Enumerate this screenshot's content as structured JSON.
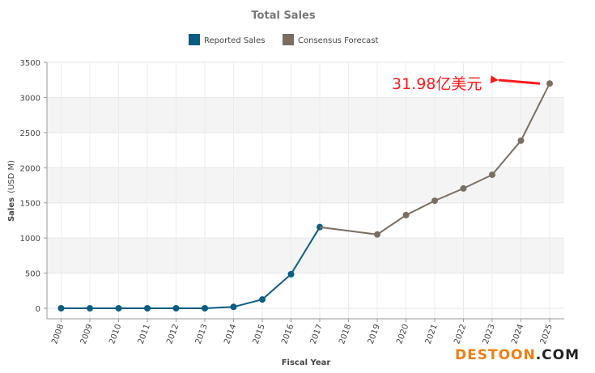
{
  "chart_data": {
    "type": "line",
    "title": "Total Sales",
    "xlabel": "Fiscal Year",
    "ylabel": "Sales",
    "ylabel_unit": "(USD M)",
    "categories": [
      "2008",
      "2009",
      "2010",
      "2011",
      "2012",
      "2013",
      "2014",
      "2015",
      "2016",
      "2017",
      "2018",
      "2019",
      "2020",
      "2021",
      "2022",
      "2023",
      "2024",
      "2025"
    ],
    "ylim": [
      0,
      3500
    ],
    "yticks": [
      0,
      500,
      1000,
      1500,
      2000,
      2500,
      3000,
      3500
    ],
    "grid": true,
    "legend_position": "top-center",
    "series": [
      {
        "name": "Reported Sales",
        "color": "#0b5c82",
        "points": [
          {
            "x": "2008",
            "y": 0
          },
          {
            "x": "2009",
            "y": 0
          },
          {
            "x": "2010",
            "y": 0
          },
          {
            "x": "2011",
            "y": 0
          },
          {
            "x": "2012",
            "y": 0
          },
          {
            "x": "2013",
            "y": 0
          },
          {
            "x": "2014",
            "y": 20
          },
          {
            "x": "2015",
            "y": 125
          },
          {
            "x": "2016",
            "y": 485
          },
          {
            "x": "2017",
            "y": 1155
          }
        ]
      },
      {
        "name": "Consensus Forecast",
        "color": "#7a6e63",
        "points": [
          {
            "x": "2017",
            "y": 1155
          },
          {
            "x": "2019",
            "y": 1050
          },
          {
            "x": "2020",
            "y": 1325
          },
          {
            "x": "2021",
            "y": 1530
          },
          {
            "x": "2022",
            "y": 1705
          },
          {
            "x": "2023",
            "y": 1900
          },
          {
            "x": "2024",
            "y": 2385
          },
          {
            "x": "2025",
            "y": 3198
          }
        ]
      }
    ],
    "annotation": {
      "text": "31.98亿美元",
      "color": "#ff1a1a",
      "points_to": {
        "x": "2025",
        "y": 3198
      }
    }
  },
  "watermark": {
    "text_orange": "DESTOON",
    "text_black": ".COM",
    "color_orange": "#f07e12",
    "color_black": "#222222"
  }
}
